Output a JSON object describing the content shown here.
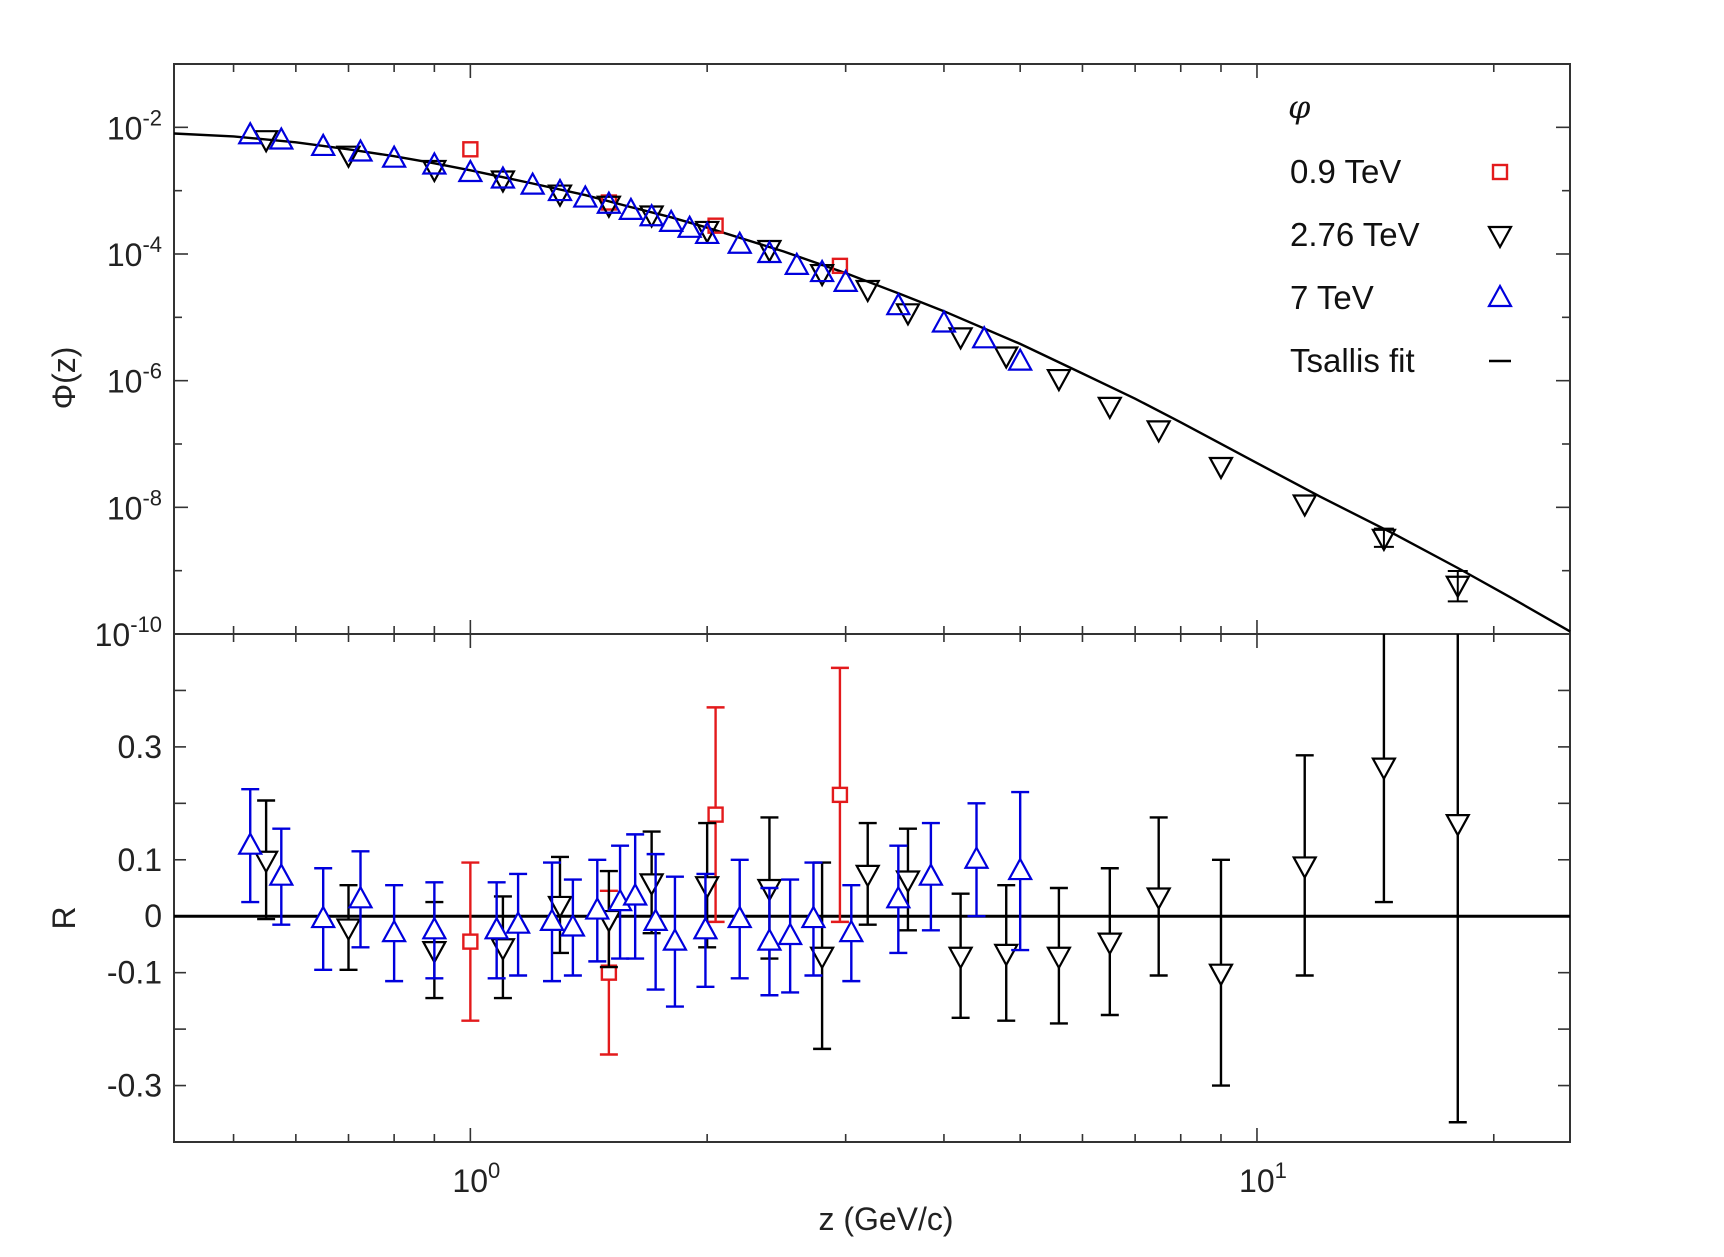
{
  "chart_data": [
    {
      "type": "scatter",
      "panel": "top",
      "ylabel": "Φ(z)",
      "yscale": "log",
      "xscale": "log",
      "xlim": [
        0.42,
        25
      ],
      "ylim": [
        1e-10,
        0.1
      ],
      "y_ticks": [
        {
          "value": 0.01,
          "base": "10",
          "exp": "-2"
        },
        {
          "value": 0.0001,
          "base": "10",
          "exp": "-4"
        },
        {
          "value": 1e-06,
          "base": "10",
          "exp": "-6"
        },
        {
          "value": 1e-08,
          "base": "10",
          "exp": "-8"
        },
        {
          "value": 1e-10,
          "base": "10",
          "exp": "-10"
        }
      ],
      "legend": {
        "title": "φ",
        "position": "top-right",
        "entries": [
          {
            "label": "0.9 TeV",
            "marker": "square",
            "color": "#e31a1c"
          },
          {
            "label": "2.76 TeV",
            "marker": "triangle-down",
            "color": "#000000"
          },
          {
            "label": "7 TeV",
            "marker": "triangle-up",
            "color": "#0000dd"
          },
          {
            "label": "Tsallis fit",
            "marker": "line",
            "color": "#000000"
          }
        ]
      },
      "series": [
        {
          "name": "0.9 TeV",
          "marker": "square",
          "color": "#e31a1c",
          "x": [
            1.0,
            1.5,
            2.05,
            2.95
          ],
          "y": [
            0.0045,
            0.00065,
            0.00028,
            6.5e-05
          ]
        },
        {
          "name": "2.76 TeV",
          "marker": "triangle-down",
          "color": "#000000",
          "x": [
            0.55,
            0.7,
            0.9,
            1.1,
            1.3,
            1.5,
            1.7,
            2.0,
            2.4,
            2.8,
            3.2,
            3.6,
            4.2,
            4.8,
            5.6,
            6.5,
            7.5,
            9.0,
            11.5,
            14.5,
            18.0
          ],
          "y": [
            0.0065,
            0.0037,
            0.0022,
            0.0015,
            0.0009,
            0.0006,
            0.00042,
            0.00024,
            0.00012,
            5e-05,
            2.8e-05,
            1.2e-05,
            5e-06,
            2.5e-06,
            1.1e-06,
            4e-07,
            1.7e-07,
            4.5e-08,
            1.15e-08,
            3.3e-09,
            6e-10
          ]
        },
        {
          "name": "7 TeV",
          "marker": "triangle-up",
          "color": "#0000dd",
          "x": [
            0.525,
            0.575,
            0.65,
            0.725,
            0.8,
            0.9,
            1.0,
            1.1,
            1.2,
            1.3,
            1.4,
            1.5,
            1.6,
            1.7,
            1.8,
            1.9,
            2.0,
            2.2,
            2.4,
            2.6,
            2.8,
            3.0,
            3.5,
            4.0,
            4.5,
            5.0
          ],
          "y": [
            0.0075,
            0.0062,
            0.0049,
            0.004,
            0.0032,
            0.0025,
            0.0019,
            0.0015,
            0.0012,
            0.00095,
            0.00075,
            0.0006,
            0.00048,
            0.00038,
            0.00031,
            0.00025,
            0.0002,
            0.00014,
            0.0001,
            6.5e-05,
            5e-05,
            3.5e-05,
            1.5e-05,
            8e-06,
            4.5e-06,
            2e-06
          ]
        }
      ],
      "fit": {
        "name": "Tsallis fit",
        "x": [
          0.42,
          0.5,
          0.6,
          0.7,
          0.8,
          0.9,
          1.0,
          1.2,
          1.4,
          1.6,
          1.8,
          2.0,
          2.5,
          3.0,
          3.5,
          4.0,
          5.0,
          6.0,
          7.0,
          8.0,
          10.0,
          12.0,
          15.0,
          18.0,
          21.0,
          25.0
        ],
        "y": [
          0.008,
          0.0072,
          0.0058,
          0.0045,
          0.0035,
          0.0027,
          0.0021,
          0.0013,
          0.00085,
          0.00055,
          0.00038,
          0.00026,
          0.00011,
          5e-05,
          2.4e-05,
          1.25e-05,
          3.8e-06,
          1.3e-06,
          5.2e-07,
          2.2e-07,
          5e-08,
          1.5e-08,
          3.7e-09,
          1.1e-09,
          3.8e-10,
          1.1e-10
        ]
      }
    },
    {
      "type": "scatter",
      "panel": "bottom",
      "xlabel": "z (GeV/c)",
      "ylabel": "R",
      "xscale": "log",
      "xlim": [
        0.42,
        25
      ],
      "ylim": [
        -0.4,
        0.5
      ],
      "x_ticks": [
        {
          "value": 1,
          "base": "10",
          "exp": "0"
        },
        {
          "value": 10,
          "base": "10",
          "exp": "1"
        }
      ],
      "y_ticks": [
        {
          "value": 0.3,
          "label": "0.3"
        },
        {
          "value": 0.1,
          "label": "0.1"
        },
        {
          "value": 0,
          "label": "0"
        },
        {
          "value": -0.1,
          "label": "-0.1"
        },
        {
          "value": -0.3,
          "label": "-0.3"
        }
      ],
      "series": [
        {
          "name": "0.9 TeV",
          "marker": "square",
          "color": "#e31a1c",
          "x": [
            1.0,
            1.5,
            2.05,
            2.95
          ],
          "y": [
            -0.045,
            -0.1,
            0.18,
            0.215
          ],
          "err": [
            0.14,
            0.145,
            0.19,
            0.225
          ]
        },
        {
          "name": "2.76 TeV",
          "marker": "triangle-down",
          "color": "#000000",
          "x": [
            0.55,
            0.7,
            0.9,
            1.1,
            1.3,
            1.5,
            1.7,
            2.0,
            2.4,
            2.8,
            3.2,
            3.6,
            4.2,
            4.8,
            5.6,
            6.5,
            7.5,
            9.0,
            11.5,
            14.5,
            18.0
          ],
          "y": [
            0.1,
            -0.02,
            -0.06,
            -0.055,
            0.02,
            -0.005,
            0.06,
            0.055,
            0.05,
            -0.07,
            0.075,
            0.065,
            -0.07,
            -0.065,
            -0.07,
            -0.045,
            0.035,
            -0.1,
            0.09,
            0.265,
            0.165
          ],
          "err": [
            0.105,
            0.075,
            0.085,
            0.09,
            0.085,
            0.085,
            0.09,
            0.11,
            0.125,
            0.165,
            0.09,
            0.09,
            0.11,
            0.12,
            0.12,
            0.13,
            0.14,
            0.2,
            0.195,
            0.24,
            0.53
          ]
        },
        {
          "name": "7 TeV",
          "marker": "triangle-up",
          "color": "#0000dd",
          "x": [
            0.525,
            0.575,
            0.65,
            0.725,
            0.8,
            0.9,
            1.08,
            1.15,
            1.27,
            1.35,
            1.45,
            1.55,
            1.62,
            1.72,
            1.82,
            1.99,
            2.2,
            2.4,
            2.55,
            2.73,
            3.05,
            3.5,
            3.85,
            4.4,
            5.0
          ],
          "y": [
            0.125,
            0.07,
            -0.005,
            0.03,
            -0.03,
            -0.025,
            -0.025,
            -0.015,
            -0.01,
            -0.02,
            0.01,
            0.025,
            0.035,
            -0.01,
            -0.045,
            -0.025,
            -0.005,
            -0.045,
            -0.035,
            -0.005,
            -0.03,
            0.03,
            0.07,
            0.1,
            0.08
          ]
        },
        "skip"
      ]
    }
  ]
}
